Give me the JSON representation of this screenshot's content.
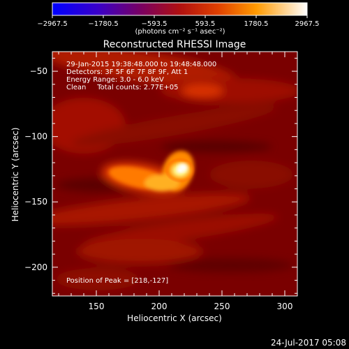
{
  "colorbar": {
    "ticks": [
      "−2967.5",
      "−1780.5",
      "−593.5",
      "593.5",
      "1780.5",
      "2967.5"
    ],
    "unit": "(photons cm⁻² s⁻¹ asec⁻²)",
    "range": [
      -2967.5,
      2967.5
    ]
  },
  "chart_data": {
    "type": "heatmap",
    "title": "Reconstructed RHESSI Image",
    "xlabel": "Heliocentric X (arcsec)",
    "ylabel": "Heliocentric Y (arcsec)",
    "xlim": [
      115,
      310
    ],
    "ylim": [
      -222,
      -35
    ],
    "xticks": [
      "150",
      "200",
      "250",
      "300"
    ],
    "yticks": [
      "−50",
      "−100",
      "−150",
      "−200"
    ],
    "peak": [
      218,
      -127
    ],
    "colormap": "hot",
    "grid": false
  },
  "annotations": {
    "time_range": "29-Jan-2015 19:38:48.000 to 19:48:48.000",
    "detectors": "Detectors: 3F 5F 6F 7F 8F 9F, Att 1",
    "energy": "Energy Range: 3.0 - 6.0 keV",
    "clean": "Clean     Total counts: 2.77E+05",
    "peak_label": "Position of Peak = [218,-127]"
  },
  "footer": {
    "timestamp": "24-Jul-2017 05:08"
  }
}
